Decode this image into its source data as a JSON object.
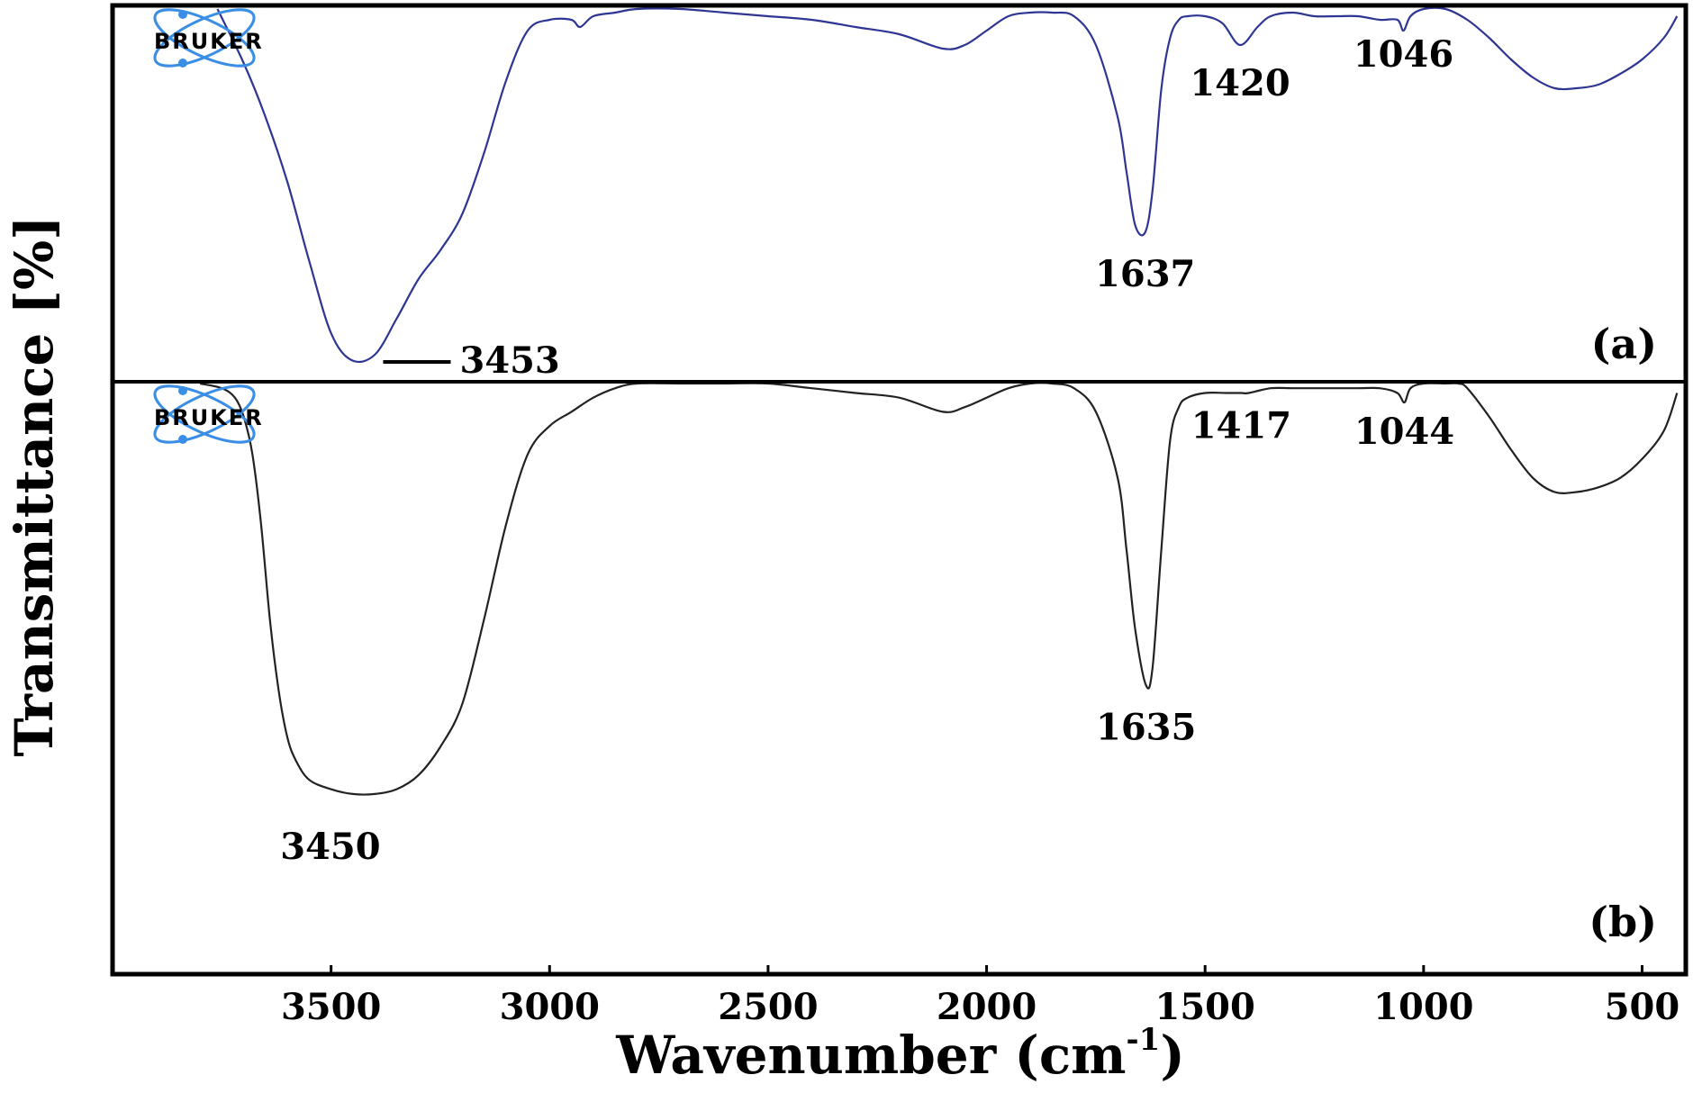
{
  "chart_data": {
    "type": "line",
    "xlabel": "Wavenumber (cm",
    "xlabel_sup": "-1",
    "xlabel_close": ")",
    "ylabel": "Transmittance [%]",
    "xlim": [
      4000,
      400
    ],
    "x_reversed": true,
    "x_ticks": [
      3500,
      3000,
      2500,
      2000,
      1500,
      1000,
      500
    ],
    "x_tick_labels": [
      "3500",
      "3000",
      "2500",
      "2000",
      "1500",
      "1000",
      "500"
    ],
    "logo_text": "BRUKER",
    "panels": [
      {
        "label": "(a)",
        "color": "#2e3592",
        "ylim": [
          0,
          100
        ],
        "x": [
          3760,
          3700,
          3650,
          3600,
          3550,
          3500,
          3453,
          3400,
          3350,
          3300,
          3250,
          3200,
          3150,
          3100,
          3050,
          3000,
          2950,
          2930,
          2900,
          2850,
          2800,
          2700,
          2600,
          2500,
          2400,
          2300,
          2200,
          2100,
          2050,
          2000,
          1950,
          1900,
          1850,
          1800,
          1750,
          1700,
          1680,
          1660,
          1637,
          1620,
          1600,
          1580,
          1560,
          1540,
          1500,
          1460,
          1420,
          1380,
          1350,
          1300,
          1250,
          1200,
          1150,
          1100,
          1060,
          1046,
          1030,
          1000,
          950,
          900,
          850,
          800,
          750,
          700,
          650,
          600,
          550,
          500,
          450,
          420
        ],
        "y": [
          100,
          85,
          70,
          52,
          30,
          10,
          2.5,
          4,
          14,
          25,
          33,
          43,
          60,
          80,
          94,
          97,
          97,
          95,
          98,
          99,
          100,
          100,
          99,
          98,
          97,
          95,
          93,
          89,
          90,
          94,
          98,
          99,
          99,
          98,
          90,
          70,
          55,
          40,
          38,
          50,
          78,
          92,
          97,
          98,
          98,
          96,
          90,
          95,
          98,
          99,
          98,
          98,
          98,
          97,
          97,
          94,
          98,
          100,
          100,
          97,
          92,
          86,
          81,
          78,
          78,
          79,
          82,
          86,
          92,
          98
        ],
        "peaks": [
          {
            "wavenumber": 3453,
            "label": "3453"
          },
          {
            "wavenumber": 1637,
            "label": "1637"
          },
          {
            "wavenumber": 1420,
            "label": "1420"
          },
          {
            "wavenumber": 1046,
            "label": "1046"
          }
        ]
      },
      {
        "label": "(b)",
        "color": "#222222",
        "ylim": [
          0,
          100
        ],
        "x": [
          3800,
          3750,
          3720,
          3700,
          3680,
          3660,
          3640,
          3620,
          3600,
          3580,
          3550,
          3500,
          3450,
          3400,
          3350,
          3300,
          3250,
          3200,
          3150,
          3100,
          3050,
          3000,
          2950,
          2900,
          2850,
          2800,
          2700,
          2600,
          2500,
          2400,
          2300,
          2200,
          2100,
          2050,
          2000,
          1950,
          1900,
          1850,
          1800,
          1750,
          1700,
          1680,
          1660,
          1635,
          1620,
          1600,
          1580,
          1560,
          1540,
          1500,
          1450,
          1417,
          1400,
          1350,
          1300,
          1250,
          1200,
          1150,
          1100,
          1060,
          1044,
          1030,
          1000,
          950,
          920,
          900,
          850,
          800,
          750,
          700,
          650,
          600,
          550,
          500,
          450,
          420
        ],
        "y": [
          100,
          99,
          97,
          93,
          85,
          70,
          50,
          35,
          25,
          20,
          16,
          14,
          13,
          13,
          14,
          17,
          23,
          32,
          50,
          70,
          85,
          91,
          94,
          97,
          99,
          100,
          100,
          100,
          100,
          99,
          98,
          97,
          94,
          95,
          97,
          99,
          100,
          100,
          99,
          94,
          80,
          65,
          48,
          36,
          40,
          65,
          88,
          95,
          97,
          98,
          98,
          98,
          98,
          99,
          99,
          99,
          99,
          99,
          99,
          98,
          96,
          99,
          100,
          100,
          100,
          99,
          93,
          86,
          80,
          77,
          77,
          78,
          80,
          84,
          90,
          98
        ],
        "peaks": [
          {
            "wavenumber": 3450,
            "label": "3450"
          },
          {
            "wavenumber": 1635,
            "label": "1635"
          },
          {
            "wavenumber": 1417,
            "label": "1417"
          },
          {
            "wavenumber": 1044,
            "label": "1044"
          }
        ]
      }
    ]
  }
}
